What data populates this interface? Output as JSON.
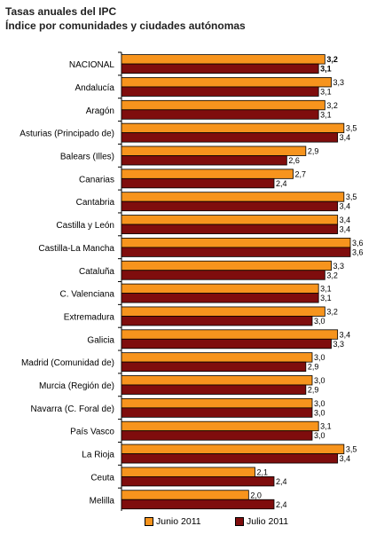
{
  "title": "Tasas anuales del IPC",
  "subtitle": "Índice por comunidades y ciudades autónomas",
  "chart_data": {
    "type": "bar",
    "orientation": "horizontal",
    "categories": [
      "NACIONAL",
      "Andalucía",
      "Aragón",
      "Asturias (Principado de)",
      "Balears (Illes)",
      "Canarias",
      "Cantabria",
      "Castilla y León",
      "Castilla-La Mancha",
      "Cataluña",
      "C. Valenciana",
      "Extremadura",
      "Galicia",
      "Madrid (Comunidad de)",
      "Murcia (Región de)",
      "Navarra (C. Foral de)",
      "País Vasco",
      "La Rioja",
      "Ceuta",
      "Melilla"
    ],
    "series": [
      {
        "name": "Junio 2011",
        "color": "#f7941d",
        "values": [
          3.2,
          3.3,
          3.2,
          3.5,
          2.9,
          2.7,
          3.5,
          3.4,
          3.6,
          3.3,
          3.1,
          3.2,
          3.4,
          3.0,
          3.0,
          3.0,
          3.1,
          3.5,
          2.1,
          2.0
        ],
        "labels": [
          "3,2",
          "3,3",
          "3,2",
          "3,5",
          "2,9",
          "2,7",
          "3,5",
          "3,4",
          "3,6",
          "3,3",
          "3,1",
          "3,2",
          "3,4",
          "3,0",
          "3,0",
          "3,0",
          "3,1",
          "3,5",
          "2,1",
          "2,0"
        ]
      },
      {
        "name": "Julio 2011",
        "color": "#7f0d0d",
        "values": [
          3.1,
          3.1,
          3.1,
          3.4,
          2.6,
          2.4,
          3.4,
          3.4,
          3.6,
          3.2,
          3.1,
          3.0,
          3.3,
          2.9,
          2.9,
          3.0,
          3.0,
          3.4,
          2.4,
          2.4
        ],
        "labels": [
          "3,1",
          "3,1",
          "3,1",
          "3,4",
          "2,6",
          "2,4",
          "3,4",
          "3,4",
          "3,6",
          "3,2",
          "3,1",
          "3,0",
          "3,3",
          "2,9",
          "2,9",
          "3,0",
          "3,0",
          "3,4",
          "2,4",
          "2,4"
        ]
      }
    ],
    "bold_categories": [
      "NACIONAL"
    ],
    "xlim": [
      0,
      3.6
    ],
    "grid": false,
    "legend_position": "bottom"
  }
}
